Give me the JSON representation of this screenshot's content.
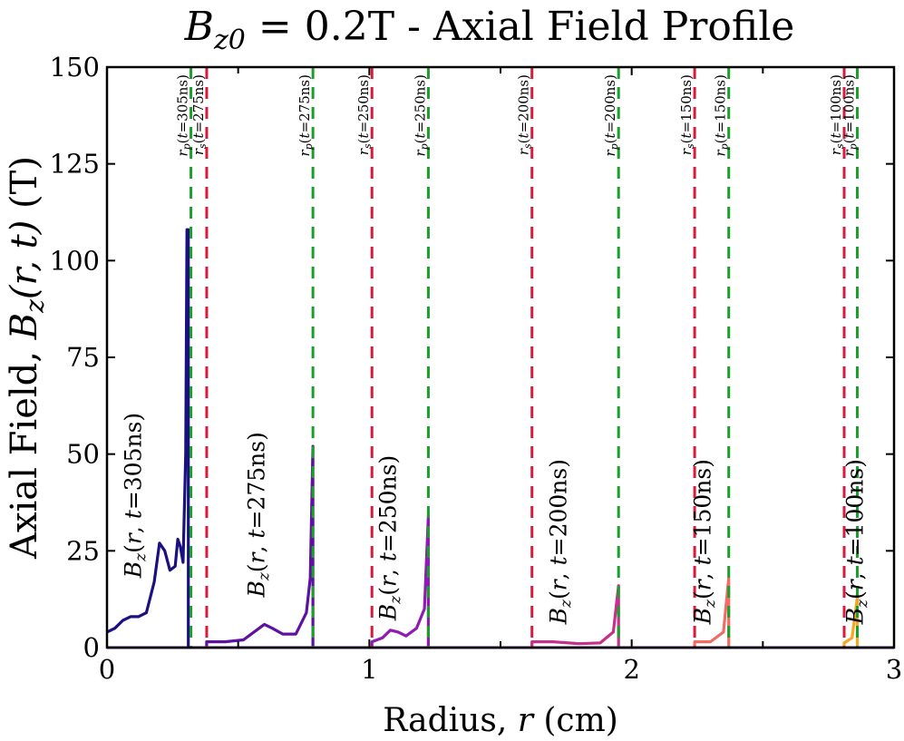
{
  "chart_data": {
    "type": "line",
    "title": "B_z0 = 0.2T - Axial Field Profile",
    "title_parts": {
      "symbol": "B",
      "subscript": "z0",
      "rest": " = 0.2T - Axial Field Profile"
    },
    "xlabel": "Radius, r (cm)",
    "ylabel": "Axial Field, B_z(r,t) (T)",
    "xlabel_parts": {
      "pre": "Radius, ",
      "var": "r",
      "post": " (cm)"
    },
    "ylabel_parts": {
      "pre": "Axial Field, ",
      "sym": "B",
      "sub": "z",
      "args": "(r, t)",
      "post": " (T)"
    },
    "xlim": [
      0,
      3
    ],
    "ylim": [
      0,
      150
    ],
    "xticks": [
      0,
      1,
      2,
      3
    ],
    "xtick_labels": [
      "0",
      "1",
      "2",
      "3"
    ],
    "xminor": [
      0.5,
      1.5,
      2.5
    ],
    "yticks": [
      0,
      25,
      50,
      75,
      100,
      125,
      150
    ],
    "ytick_labels": [
      "0",
      "25",
      "50",
      "75",
      "100",
      "125",
      "150"
    ],
    "series": [
      {
        "name": "B_z(r, t=305ns)",
        "label": "B_z(r, t=305ns)",
        "color": "#1a1080",
        "x": [
          0,
          0.03,
          0.06,
          0.09,
          0.12,
          0.15,
          0.18,
          0.2,
          0.22,
          0.24,
          0.26,
          0.27,
          0.28,
          0.29,
          0.3,
          0.305,
          0.31,
          0.31
        ],
        "y": [
          4,
          5,
          7,
          8,
          8,
          9,
          17,
          27,
          25,
          20,
          21,
          28,
          26,
          22,
          50,
          108,
          108,
          0
        ]
      },
      {
        "name": "B_z(r, t=275ns)",
        "label": "B_z(r, t=275ns)",
        "color": "#5e10a0",
        "x": [
          0.38,
          0.38,
          0.45,
          0.52,
          0.57,
          0.6,
          0.63,
          0.67,
          0.72,
          0.76,
          0.775,
          0.785,
          0.785
        ],
        "y": [
          0,
          1.5,
          1.5,
          2,
          4.5,
          6,
          5,
          3.5,
          3.5,
          9,
          18,
          52,
          0
        ]
      },
      {
        "name": "B_z(r, t=250ns)",
        "label": "B_z(r, t=250ns)",
        "color": "#8e1cb0",
        "x": [
          1.01,
          1.01,
          1.05,
          1.08,
          1.11,
          1.14,
          1.18,
          1.21,
          1.225,
          1.225
        ],
        "y": [
          0,
          1.5,
          2.5,
          4.5,
          4,
          3,
          5,
          10,
          34,
          0
        ]
      },
      {
        "name": "B_z(r, t=200ns)",
        "label": "B_z(r, t=200ns)",
        "color": "#c4308c",
        "x": [
          1.62,
          1.62,
          1.7,
          1.8,
          1.88,
          1.93,
          1.95,
          1.95
        ],
        "y": [
          0,
          1.5,
          1.5,
          1,
          1.2,
          4,
          16,
          0
        ]
      },
      {
        "name": "B_z(r, t=150ns)",
        "label": "B_z(r, t=150ns)",
        "color": "#f26b64",
        "x": [
          2.24,
          2.24,
          2.3,
          2.35,
          2.37,
          2.37
        ],
        "y": [
          0,
          1.5,
          1.5,
          4,
          18,
          0
        ]
      },
      {
        "name": "B_z(r, t=100ns)",
        "label": "B_z(r, t=100ns)",
        "color": "#f5a623",
        "x": [
          2.81,
          2.81,
          2.84,
          2.86,
          2.86
        ],
        "y": [
          0,
          1.2,
          2.5,
          13,
          0
        ]
      }
    ],
    "vlines": [
      {
        "type": "r_s",
        "label": "r_s(t=275ns)",
        "x": 0.38,
        "color": "#d81b3c",
        "sub": "s",
        "t": "275ns"
      },
      {
        "type": "r_p",
        "label": "r_p(t=305ns)",
        "x": 0.32,
        "color": "#1aa02a",
        "sub": "p",
        "t": "305ns"
      },
      {
        "type": "r_p",
        "label": "r_p(t=275ns)",
        "x": 0.785,
        "color": "#1aa02a",
        "sub": "p",
        "t": "275ns"
      },
      {
        "type": "r_s",
        "label": "r_s(t=250ns)",
        "x": 1.01,
        "color": "#d81b3c",
        "sub": "s",
        "t": "250ns"
      },
      {
        "type": "r_p",
        "label": "r_p(t=250ns)",
        "x": 1.225,
        "color": "#1aa02a",
        "sub": "p",
        "t": "250ns"
      },
      {
        "type": "r_s",
        "label": "r_s(t=200ns)",
        "x": 1.62,
        "color": "#d81b3c",
        "sub": "s",
        "t": "200ns"
      },
      {
        "type": "r_p",
        "label": "r_p(t=200ns)",
        "x": 1.95,
        "color": "#1aa02a",
        "sub": "p",
        "t": "200ns"
      },
      {
        "type": "r_s",
        "label": "r_s(t=150ns)",
        "x": 2.24,
        "color": "#d81b3c",
        "sub": "s",
        "t": "150ns"
      },
      {
        "type": "r_p",
        "label": "r_p(t=150ns)",
        "x": 2.37,
        "color": "#1aa02a",
        "sub": "p",
        "t": "150ns"
      },
      {
        "type": "r_s",
        "label": "r_s(t=100ns)",
        "x": 2.81,
        "color": "#d81b3c",
        "sub": "s",
        "t": "100ns"
      },
      {
        "type": "r_p",
        "label": "r_p(t=100ns)",
        "x": 2.86,
        "color": "#1aa02a",
        "sub": "p",
        "t": "100ns"
      }
    ],
    "curve_annotations": [
      {
        "series": "B_z(r, t=305ns)",
        "text": "B_z(r, t=305ns)",
        "x": 0.13,
        "y": 18
      },
      {
        "series": "B_z(r, t=275ns)",
        "text": "B_z(r, t=275ns)",
        "x": 0.6,
        "y": 13
      },
      {
        "series": "B_z(r, t=250ns)",
        "text": "B_z(r, t=250ns)",
        "x": 1.1,
        "y": 7
      },
      {
        "series": "B_z(r, t=200ns)",
        "text": "B_z(r, t=200ns)",
        "x": 1.75,
        "y": 6
      },
      {
        "series": "B_z(r, t=150ns)",
        "text": "B_z(r, t=150ns)",
        "x": 2.3,
        "y": 6
      },
      {
        "series": "B_z(r, t=100ns)",
        "text": "B_z(r, t=100ns)",
        "x": 2.88,
        "y": 6
      }
    ]
  }
}
